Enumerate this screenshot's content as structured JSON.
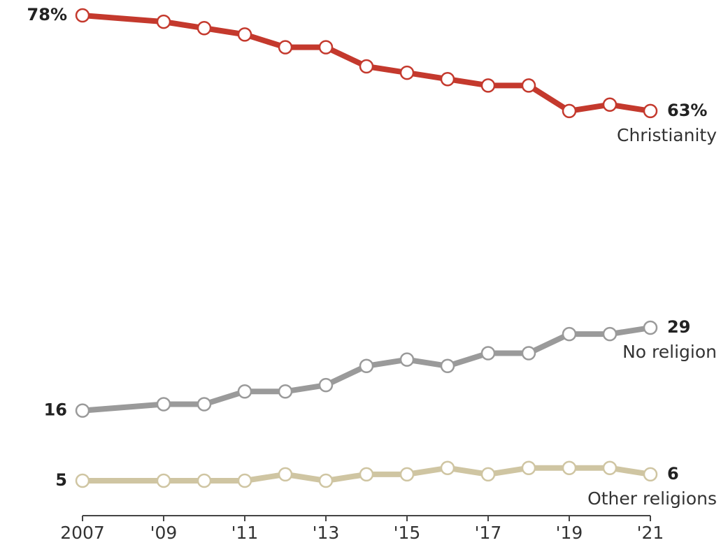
{
  "chart_data": {
    "type": "line",
    "x": [
      2007,
      2009,
      2010,
      2011,
      2012,
      2013,
      2014,
      2015,
      2016,
      2017,
      2018,
      2019,
      2020,
      2021
    ],
    "xlim": [
      2007,
      2021
    ],
    "xticks": [
      2007,
      {
        "value": 2009,
        "label": "'09"
      },
      {
        "value": 2011,
        "label": "'11"
      },
      {
        "value": 2013,
        "label": "'13"
      },
      {
        "value": 2015,
        "label": "'15"
      },
      {
        "value": 2017,
        "label": "'17"
      },
      {
        "value": 2019,
        "label": "'19"
      },
      {
        "value": 2021,
        "label": "'21"
      }
    ],
    "ylim": [
      5,
      78
    ],
    "series": [
      {
        "name": "Christianity",
        "color": "#c4392d",
        "values": [
          78,
          77,
          76,
          75,
          73,
          73,
          70,
          69,
          68,
          67,
          67,
          63,
          64,
          63
        ],
        "value_labels": [
          "78%",
          null,
          null,
          null,
          null,
          null,
          null,
          null,
          null,
          null,
          null,
          null,
          null,
          "63%"
        ]
      },
      {
        "name": "No religion",
        "color": "#9a9a9a",
        "values": [
          16,
          17,
          17,
          19,
          19,
          20,
          23,
          24,
          23,
          25,
          25,
          28,
          28,
          29
        ],
        "value_labels": [
          "16",
          null,
          null,
          null,
          null,
          null,
          null,
          null,
          null,
          null,
          null,
          null,
          null,
          "29"
        ]
      },
      {
        "name": "Other religions",
        "color": "#cfc5a2",
        "values": [
          5,
          5,
          5,
          5,
          6,
          5,
          6,
          6,
          7,
          6,
          7,
          7,
          7,
          6
        ],
        "value_labels": [
          "5",
          null,
          null,
          null,
          null,
          null,
          null,
          null,
          null,
          null,
          null,
          null,
          null,
          "6"
        ]
      }
    ]
  }
}
